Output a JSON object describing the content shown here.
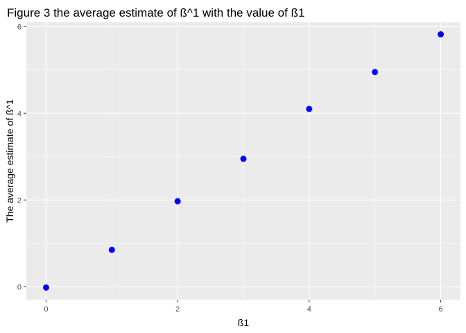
{
  "chart_data": {
    "type": "scatter",
    "title": "Figure 3 the average estimate of ß^1 with the value of ß1",
    "xlabel": "ß1",
    "ylabel": "The average estimate of ß^1",
    "xlim": [
      -0.3,
      6.3
    ],
    "ylim": [
      -0.3,
      6.1
    ],
    "xticks": [
      0,
      2,
      4,
      6
    ],
    "yticks": [
      0,
      2,
      4,
      6
    ],
    "xtick_labels": [
      "0",
      "2",
      "4",
      "6"
    ],
    "ytick_labels": [
      "0",
      "2",
      "4",
      "6"
    ],
    "grid": true,
    "point_color": "#0000ff",
    "x": [
      0,
      1,
      2,
      3,
      4,
      5,
      6
    ],
    "y": [
      -0.02,
      0.85,
      1.97,
      2.95,
      4.1,
      4.95,
      5.82
    ]
  }
}
